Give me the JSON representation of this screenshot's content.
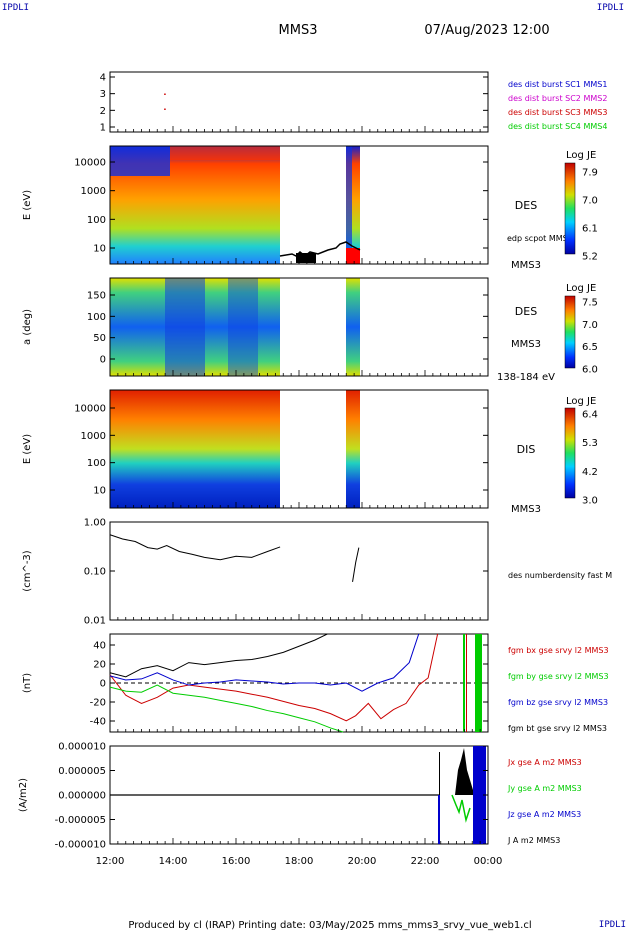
{
  "corner_tags": {
    "tl": "IPDLI",
    "tr": "IPDLI",
    "br": "IPDLI"
  },
  "header": {
    "title": "MMS3",
    "datetime": "07/Aug/2023 12:00"
  },
  "footer": {
    "text": "Produced by cl (IRAP)   Printing date: 03/May/2025   mms_mms3_srvy_vue_web1.cl"
  },
  "colors": {
    "blue": "#0000cc",
    "magenta": "#cc00cc",
    "red": "#cc0000",
    "green": "#00cc00",
    "black": "#000000"
  },
  "chart_data": [
    {
      "type": "scatter",
      "panel": "burst",
      "yticks": [
        "4",
        "3",
        "2",
        "1"
      ],
      "ylim": [
        0.5,
        4.5
      ],
      "points": [
        {
          "x": 13.72,
          "y": 3.0,
          "color": "red"
        },
        {
          "x": 13.72,
          "y": 2.0,
          "color": "red"
        }
      ],
      "legend": [
        {
          "text": "des dist burst SC1 MMS1",
          "color": "blue"
        },
        {
          "text": "des dist burst SC2 MMS2",
          "color": "magenta"
        },
        {
          "text": "des dist burst SC3 MMS3",
          "color": "red"
        },
        {
          "text": "des dist burst SC4 MMS4",
          "color": "green"
        }
      ]
    },
    {
      "type": "heatmap",
      "panel": "des_energy",
      "ylabel": "E (eV)",
      "yticks": [
        "10000",
        "1000",
        "100",
        "10"
      ],
      "label": "DES",
      "label2": "MMS3",
      "overlay_label": "edp scpot MMS3",
      "colorbar": {
        "title": "Log JE",
        "ticks": [
          "7.9",
          "7.0",
          "6.1",
          "5.2"
        ]
      }
    },
    {
      "type": "heatmap",
      "panel": "des_pitch",
      "ylabel": "a (deg)",
      "yticks": [
        "150",
        "100",
        "50",
        "0"
      ],
      "label": "DES",
      "label2": "MMS3",
      "label3": "138-184 eV",
      "colorbar": {
        "title": "Log JE",
        "ticks": [
          "7.5",
          "7.0",
          "6.5",
          "6.0"
        ]
      }
    },
    {
      "type": "heatmap",
      "panel": "dis_energy",
      "ylabel": "E (eV)",
      "yticks": [
        "10000",
        "1000",
        "100",
        "10"
      ],
      "label": "DIS",
      "label2": "MMS3",
      "colorbar": {
        "title": "Log JE",
        "ticks": [
          "6.4",
          "5.3",
          "4.2",
          "3.0"
        ]
      }
    },
    {
      "type": "line",
      "panel": "density",
      "ylabel": "(cm^-3)",
      "yticks": [
        "1.00",
        "0.10",
        "0.01"
      ],
      "label": "des numberdensity fast M",
      "series": [
        {
          "points": [
            [
              12.0,
              0.55
            ],
            [
              12.4,
              0.45
            ],
            [
              12.8,
              0.4
            ],
            [
              13.2,
              0.3
            ],
            [
              13.5,
              0.28
            ],
            [
              13.8,
              0.33
            ],
            [
              14.2,
              0.25
            ],
            [
              14.6,
              0.22
            ],
            [
              15.0,
              0.19
            ],
            [
              15.5,
              0.17
            ],
            [
              16.0,
              0.2
            ],
            [
              16.5,
              0.19
            ],
            [
              17.0,
              0.25
            ],
            [
              17.4,
              0.31
            ],
            [
              19.7,
              0.06
            ],
            [
              19.8,
              0.15
            ],
            [
              19.9,
              0.3
            ]
          ]
        }
      ]
    },
    {
      "type": "line",
      "panel": "fgm",
      "ylabel": "(nT)",
      "yticks": [
        "40",
        "20",
        "0",
        "-20",
        "-40"
      ],
      "ylim": [
        -48,
        48
      ],
      "legend": [
        {
          "text": "fgm bx gse srvy l2 MMS3",
          "color": "red"
        },
        {
          "text": "fgm by gse srvy l2 MMS3",
          "color": "green"
        },
        {
          "text": "fgm bz gse srvy l2 MMS3",
          "color": "blue"
        },
        {
          "text": "fgm bt gse srvy l2 MMS3",
          "color": "black"
        }
      ],
      "series": [
        {
          "color": "black",
          "points": [
            [
              12.0,
              10
            ],
            [
              12.5,
              6
            ],
            [
              13.0,
              14
            ],
            [
              13.5,
              17
            ],
            [
              14.0,
              12
            ],
            [
              14.5,
              20
            ],
            [
              15.0,
              18
            ],
            [
              15.5,
              20
            ],
            [
              16.0,
              22
            ],
            [
              16.5,
              23
            ],
            [
              17.0,
              26
            ],
            [
              17.5,
              30
            ],
            [
              18.0,
              36
            ],
            [
              18.5,
              42
            ],
            [
              18.9,
              48
            ]
          ]
        },
        {
          "color": "red",
          "points": [
            [
              12.0,
              8
            ],
            [
              12.5,
              -12
            ],
            [
              13.0,
              -20
            ],
            [
              13.5,
              -14
            ],
            [
              14.0,
              -5
            ],
            [
              14.5,
              -2
            ],
            [
              15.0,
              -4
            ],
            [
              15.5,
              -6
            ],
            [
              16.0,
              -8
            ],
            [
              16.5,
              -11
            ],
            [
              17.0,
              -14
            ],
            [
              17.5,
              -18
            ],
            [
              18.0,
              -22
            ],
            [
              18.5,
              -25
            ],
            [
              19.0,
              -30
            ],
            [
              19.5,
              -37
            ],
            [
              19.8,
              -32
            ],
            [
              20.2,
              -20
            ],
            [
              20.6,
              -35
            ],
            [
              21.0,
              -26
            ],
            [
              21.4,
              -20
            ],
            [
              21.8,
              -2
            ],
            [
              22.1,
              5
            ],
            [
              22.4,
              48
            ]
          ]
        },
        {
          "color": "green",
          "points": [
            [
              12.0,
              -4
            ],
            [
              12.5,
              -8
            ],
            [
              13.0,
              -9
            ],
            [
              13.5,
              -2
            ],
            [
              14.0,
              -10
            ],
            [
              14.5,
              -12
            ],
            [
              15.0,
              -14
            ],
            [
              15.5,
              -17
            ],
            [
              16.0,
              -20
            ],
            [
              16.5,
              -23
            ],
            [
              17.0,
              -27
            ],
            [
              17.5,
              -30
            ],
            [
              18.0,
              -34
            ],
            [
              18.5,
              -38
            ],
            [
              19.0,
              -44
            ],
            [
              19.4,
              -48
            ]
          ]
        },
        {
          "color": "blue",
          "points": [
            [
              12.0,
              7
            ],
            [
              12.5,
              3
            ],
            [
              13.0,
              4
            ],
            [
              13.5,
              10
            ],
            [
              14.0,
              3
            ],
            [
              14.5,
              -2
            ],
            [
              15.0,
              0
            ],
            [
              15.5,
              1
            ],
            [
              16.0,
              3
            ],
            [
              16.5,
              2
            ],
            [
              17.0,
              1
            ],
            [
              17.5,
              -1
            ],
            [
              18.0,
              0
            ],
            [
              18.5,
              0
            ],
            [
              19.0,
              -2
            ],
            [
              19.5,
              0
            ],
            [
              20.0,
              -8
            ],
            [
              20.5,
              0
            ],
            [
              21.0,
              5
            ],
            [
              21.5,
              20
            ],
            [
              21.8,
              48
            ]
          ]
        }
      ],
      "xticks": [
        "12:00",
        "14:00",
        "16:00",
        "18:00",
        "20:00",
        "22:00",
        "00:00"
      ]
    },
    {
      "type": "line",
      "panel": "current",
      "ylabel": "(A/m2)",
      "yticks": [
        "0.000010",
        "0.000005",
        "0.000000",
        "-0.000005",
        "-0.000010"
      ],
      "ylim": [
        -1e-05,
        1e-05
      ],
      "legend": [
        {
          "text": "Jx gse A m2 MMS3",
          "color": "red"
        },
        {
          "text": "Jy gse A m2 MMS3",
          "color": "green"
        },
        {
          "text": "Jz gse A m2 MMS3",
          "color": "blue"
        },
        {
          "text": "J A m2 MMS3",
          "color": "black"
        }
      ],
      "xticks": [
        "12:00",
        "14:00",
        "16:00",
        "18:00",
        "20:00",
        "22:00",
        "00:00"
      ]
    }
  ]
}
